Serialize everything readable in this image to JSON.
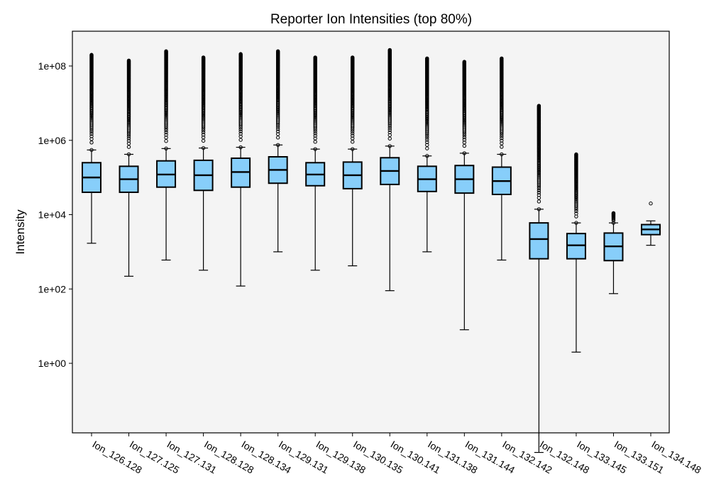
{
  "chart_data": {
    "type": "box",
    "title": "Reporter Ion Intensities (top 80%)",
    "xlabel": "",
    "ylabel": "Intensity",
    "y_scale": "log",
    "ylim": [
      0.003,
      800000000
    ],
    "y_ticks": [
      1,
      100,
      10000,
      1000000,
      100000000
    ],
    "y_tick_labels": [
      "1e+00",
      "1e+02",
      "1e+04",
      "1e+06",
      "1e+08"
    ],
    "grid": false,
    "plot_background": "#f4f4f4",
    "box_color": "#87cefa",
    "categories": [
      "Ion_126.128",
      "Ion_127.125",
      "Ion_127.131",
      "Ion_128.128",
      "Ion_128.134",
      "Ion_129.131",
      "Ion_129.138",
      "Ion_130.135",
      "Ion_130.141",
      "Ion_131.138",
      "Ion_131.144",
      "Ion_132.142",
      "Ion_132.148",
      "Ion_133.145",
      "Ion_133.151",
      "Ion_134.148"
    ],
    "boxes": [
      {
        "whislo": 1700,
        "q1": 40000,
        "med": 100000,
        "q3": 250000,
        "whishi": 550000,
        "flier_min": 550000,
        "flier_max": 200000000
      },
      {
        "whislo": 220,
        "q1": 40000,
        "med": 90000,
        "q3": 200000,
        "whishi": 420000,
        "flier_min": 420000,
        "flier_max": 140000000
      },
      {
        "whislo": 600,
        "q1": 55000,
        "med": 120000,
        "q3": 280000,
        "whishi": 600000,
        "flier_min": 600000,
        "flier_max": 250000000
      },
      {
        "whislo": 320,
        "q1": 45000,
        "med": 115000,
        "q3": 290000,
        "whishi": 620000,
        "flier_min": 620000,
        "flier_max": 170000000
      },
      {
        "whislo": 120,
        "q1": 55000,
        "med": 140000,
        "q3": 330000,
        "whishi": 650000,
        "flier_min": 650000,
        "flier_max": 210000000
      },
      {
        "whislo": 1000,
        "q1": 70000,
        "med": 160000,
        "q3": 360000,
        "whishi": 750000,
        "flier_min": 750000,
        "flier_max": 250000000
      },
      {
        "whislo": 320,
        "q1": 60000,
        "med": 120000,
        "q3": 250000,
        "whishi": 580000,
        "flier_min": 580000,
        "flier_max": 170000000
      },
      {
        "whislo": 420,
        "q1": 50000,
        "med": 115000,
        "q3": 260000,
        "whishi": 580000,
        "flier_min": 580000,
        "flier_max": 170000000
      },
      {
        "whislo": 90,
        "q1": 65000,
        "med": 150000,
        "q3": 340000,
        "whishi": 700000,
        "flier_min": 700000,
        "flier_max": 270000000
      },
      {
        "whislo": 1000,
        "q1": 42000,
        "med": 90000,
        "q3": 200000,
        "whishi": 380000,
        "flier_min": 380000,
        "flier_max": 160000000
      },
      {
        "whislo": 8,
        "q1": 38000,
        "med": 90000,
        "q3": 210000,
        "whishi": 450000,
        "flier_min": 450000,
        "flier_max": 130000000
      },
      {
        "whislo": 600,
        "q1": 35000,
        "med": 80000,
        "q3": 190000,
        "whishi": 420000,
        "flier_min": 420000,
        "flier_max": 160000000
      },
      {
        "whislo": 0.004,
        "q1": 650,
        "med": 2200,
        "q3": 6000,
        "whishi": 14000,
        "flier_min": 14000,
        "flier_max": 8500000
      },
      {
        "whislo": 2,
        "q1": 650,
        "med": 1500,
        "q3": 3100,
        "whishi": 6000,
        "flier_min": 6000,
        "flier_max": 420000
      },
      {
        "whislo": 75,
        "q1": 580,
        "med": 1400,
        "q3": 3200,
        "whishi": 6000,
        "flier_min": 6000,
        "flier_max": 11000
      },
      {
        "whislo": 1500,
        "q1": 2900,
        "med": 4000,
        "q3": 5400,
        "whishi": 6800,
        "flier_min": 20000,
        "flier_max": 20000
      }
    ]
  }
}
